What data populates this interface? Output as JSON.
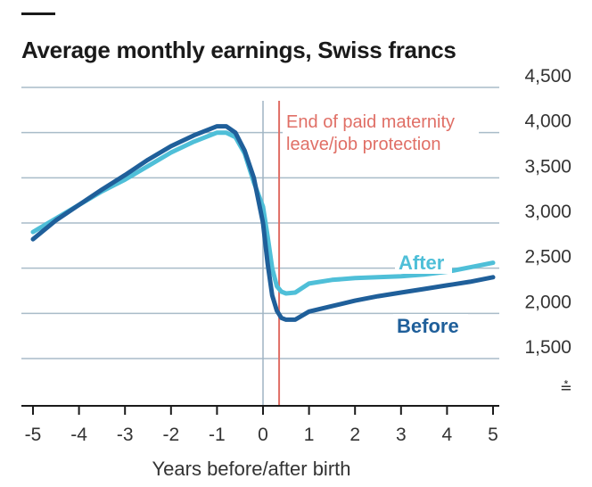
{
  "colors": {
    "before": "#1f5f9a",
    "after": "#4fbfd8",
    "grid": "#a9bcc9",
    "axis": "#1a1a1a",
    "zero_line": "#9fb3c3",
    "annotation": "#e06f66",
    "background": "#ffffff"
  },
  "chart_data": {
    "type": "line",
    "title": "Average monthly earnings, Swiss francs",
    "xlabel": "Years before/after birth",
    "ylabel": "",
    "xlim": [
      -5,
      5
    ],
    "ylim": [
      1500,
      4500
    ],
    "x_ticks": [
      -5,
      -4,
      -3,
      -2,
      -1,
      0,
      1,
      2,
      3,
      4,
      5
    ],
    "x_tick_labels": [
      "-5",
      "-4",
      "-3",
      "-2",
      "-1",
      "0",
      "1",
      "2",
      "3",
      "4",
      "5"
    ],
    "y_ticks": [
      1500,
      2000,
      2500,
      3000,
      3500,
      4000,
      4500
    ],
    "y_tick_labels": [
      "1,500",
      "2,000",
      "2,500",
      "3,000",
      "3,500",
      "4,000",
      "4,500"
    ],
    "y_axis_side": "right",
    "axis_break_symbol": "⩮",
    "grid": true,
    "legend": "direct labels on lines",
    "annotation": {
      "x": 0.35,
      "lines": [
        "End of paid maternity",
        "leave/job protection"
      ]
    },
    "series": [
      {
        "name": "Before",
        "x": [
          -5,
          -4.5,
          -4,
          -3.5,
          -3,
          -2.5,
          -2,
          -1.5,
          -1,
          -0.8,
          -0.6,
          -0.4,
          -0.2,
          0,
          0.1,
          0.2,
          0.3,
          0.4,
          0.5,
          0.7,
          1,
          1.5,
          2,
          2.5,
          3,
          3.5,
          4,
          4.5,
          5
        ],
        "y": [
          2820,
          3030,
          3200,
          3370,
          3530,
          3700,
          3850,
          3970,
          4070,
          4070,
          4000,
          3800,
          3500,
          3000,
          2550,
          2200,
          2030,
          1950,
          1930,
          1930,
          2020,
          2080,
          2140,
          2190,
          2230,
          2270,
          2310,
          2350,
          2400
        ]
      },
      {
        "name": "After",
        "x": [
          -5,
          -4.5,
          -4,
          -3.5,
          -3,
          -2.5,
          -2,
          -1.5,
          -1,
          -0.8,
          -0.6,
          -0.4,
          -0.2,
          0,
          0.1,
          0.2,
          0.3,
          0.4,
          0.5,
          0.7,
          1,
          1.5,
          2,
          2.5,
          3,
          3.5,
          4,
          4.5,
          5
        ],
        "y": [
          2900,
          3050,
          3200,
          3350,
          3480,
          3630,
          3780,
          3900,
          4000,
          4000,
          3950,
          3770,
          3450,
          3180,
          2850,
          2500,
          2300,
          2240,
          2220,
          2230,
          2330,
          2370,
          2390,
          2400,
          2410,
          2430,
          2460,
          2510,
          2560
        ]
      }
    ]
  }
}
